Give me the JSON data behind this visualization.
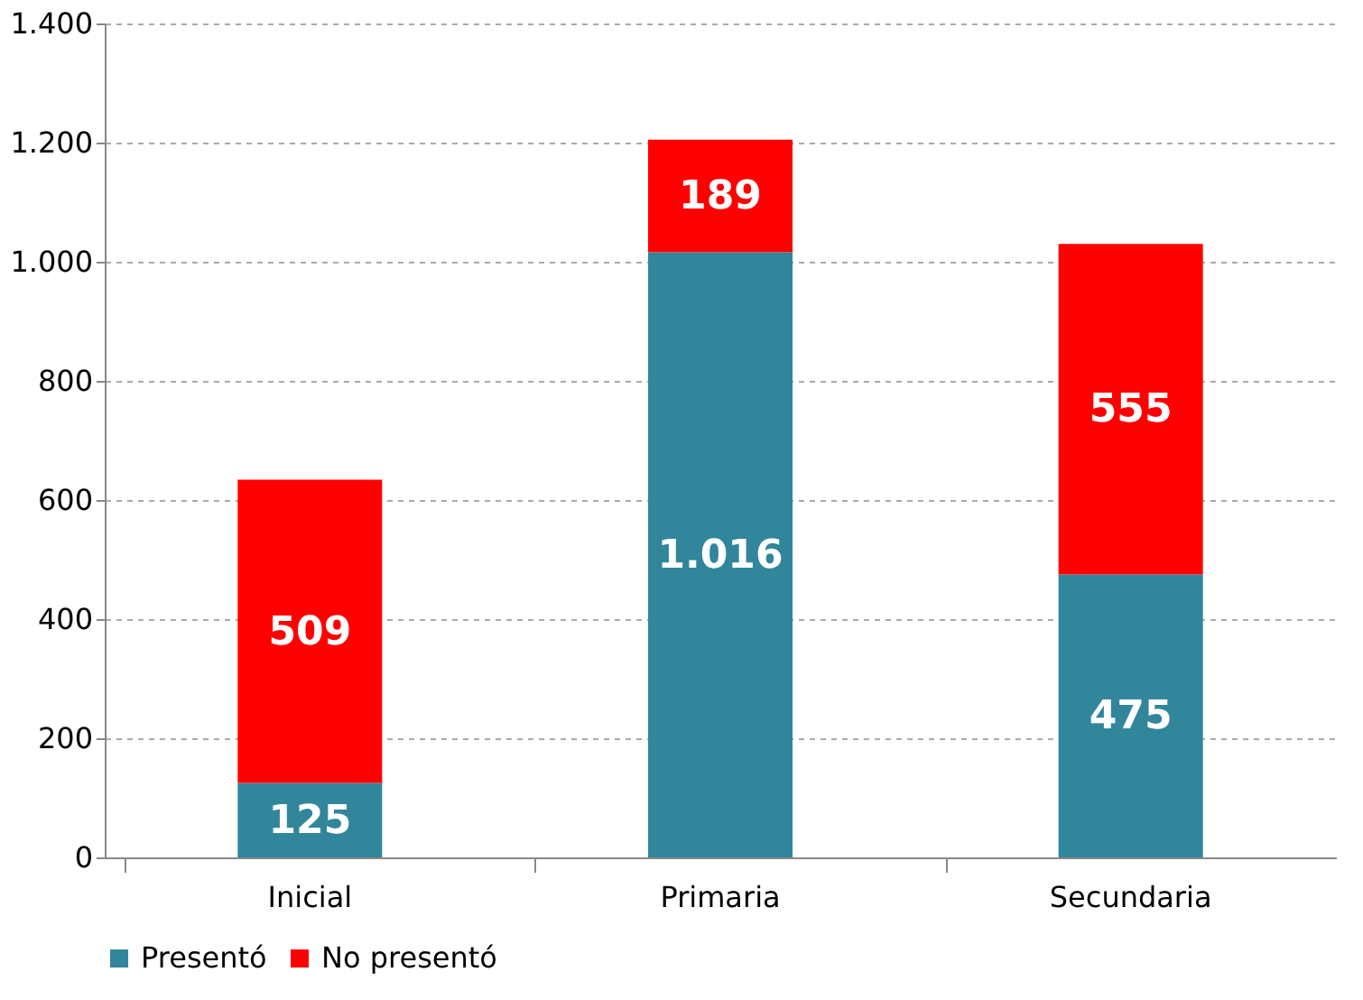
{
  "chart_data": {
    "type": "bar",
    "stacked": true,
    "categories": [
      "Inicial",
      "Primaria",
      "Secundaria"
    ],
    "series": [
      {
        "name": "Presentó",
        "color": "#31869b",
        "values": [
          125,
          1016,
          475
        ],
        "value_labels": [
          "125",
          "1.016",
          "475"
        ]
      },
      {
        "name": "No presentó",
        "color": "#ff0000",
        "values": [
          509,
          189,
          555
        ],
        "value_labels": [
          "509",
          "189",
          "555"
        ]
      }
    ],
    "ylim": [
      0,
      1400
    ],
    "yticks": [
      0,
      200,
      400,
      600,
      800,
      {
        "value": 1000,
        "label": "1.000"
      },
      {
        "value": 1200,
        "label": "1.200"
      },
      {
        "value": 1400,
        "label": "1.400"
      }
    ],
    "grid": "y",
    "legend": "bottom"
  }
}
